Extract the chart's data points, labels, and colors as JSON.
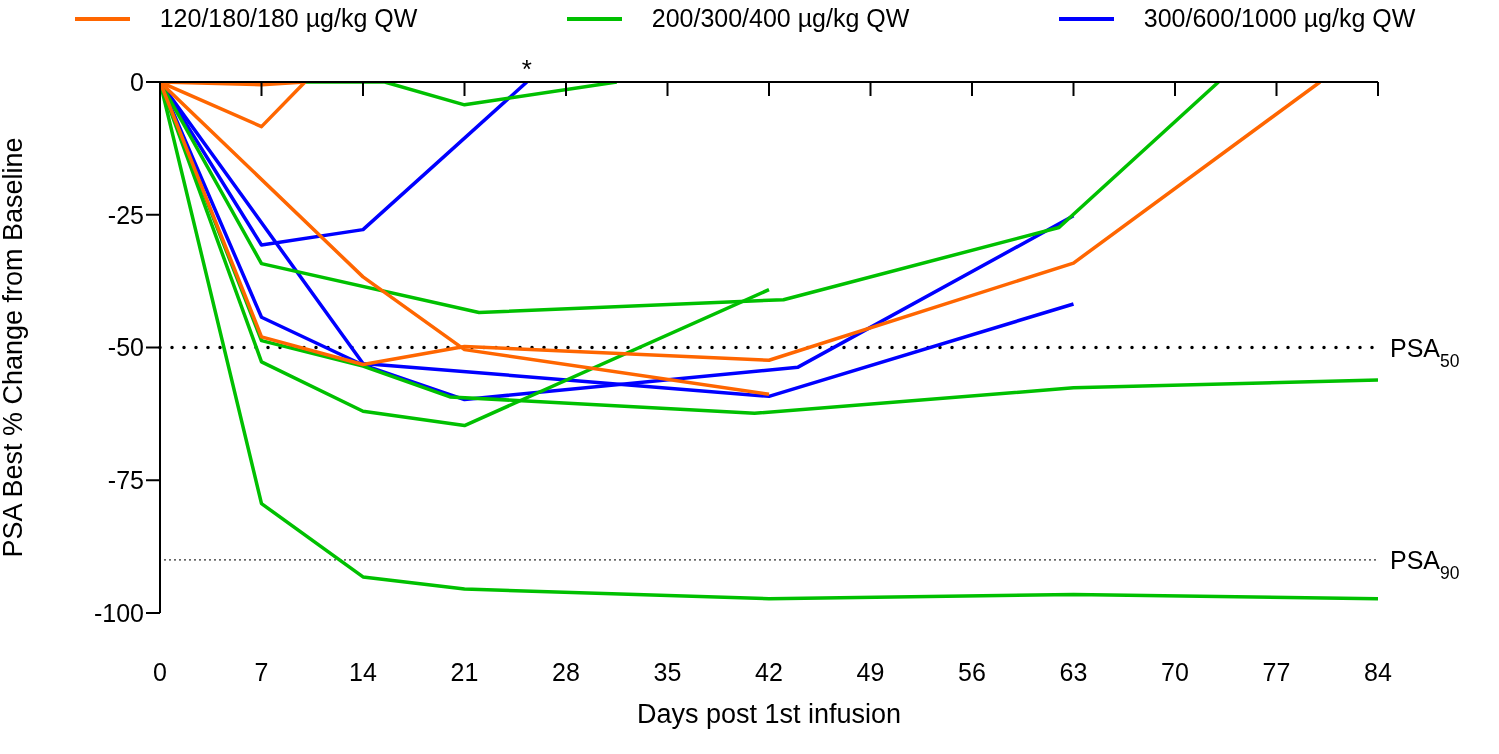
{
  "chart_data": {
    "type": "line",
    "xlabel": "Days post 1st infusion",
    "ylabel": "PSA Best % Change from Baseline",
    "xlim": [
      0,
      84
    ],
    "xticks": [
      0,
      7,
      14,
      21,
      28,
      35,
      42,
      49,
      56,
      63,
      70,
      77,
      84
    ],
    "ylim": [
      -100,
      0
    ],
    "yticks": [
      0,
      -25,
      -50,
      -75,
      -100
    ],
    "legend": "top",
    "marker": "none",
    "line_style": "solid",
    "series": [
      {
        "name": "120/180/180 µg/kg QW",
        "color": "#ff6600",
        "x": [
          0,
          7,
          10
        ],
        "values": [
          0,
          -0.5,
          0
        ]
      },
      {
        "color": "#ff6600",
        "x": [
          0,
          7,
          10
        ],
        "values": [
          0,
          -8.4,
          0
        ]
      },
      {
        "color": "#ff6600",
        "x": [
          0,
          14,
          21,
          42
        ],
        "values": [
          0,
          -36.7,
          -50.4,
          -58.8
        ]
      },
      {
        "color": "#ff6600",
        "x": [
          0,
          7,
          14,
          21,
          42,
          63,
          80
        ],
        "values": [
          0,
          -48,
          -53.2,
          -49.8,
          -52.4,
          -34.1,
          0
        ]
      },
      {
        "name": "200/300/400 µg/kg QW",
        "color": "#00c000",
        "x": [
          0,
          15.5,
          21,
          31.5
        ],
        "values": [
          0,
          0,
          -4.3,
          0
        ]
      },
      {
        "color": "#00c000",
        "x": [
          0,
          7,
          22,
          43,
          62,
          73
        ],
        "values": [
          0,
          -34.2,
          -43.4,
          -41,
          -27.4,
          0
        ]
      },
      {
        "color": "#00c000",
        "x": [
          0,
          7,
          14,
          20,
          41,
          63,
          84
        ],
        "values": [
          0,
          -48.7,
          -53.5,
          -59.3,
          -62.4,
          -57.6,
          -56.1
        ]
      },
      {
        "color": "#00c000",
        "x": [
          0,
          7,
          14,
          21,
          42
        ],
        "values": [
          0,
          -52.7,
          -62,
          -64.7,
          -39.1
        ]
      },
      {
        "color": "#00c000",
        "x": [
          0,
          7,
          14,
          21,
          42,
          63,
          84
        ],
        "values": [
          0,
          -79.4,
          -93.2,
          -95.5,
          -97.3,
          -96.5,
          -97.3
        ]
      },
      {
        "name": "300/600/1000 µg/kg QW",
        "color": "#0000ff",
        "x": [
          0,
          7,
          14,
          25.3
        ],
        "values": [
          0,
          -30.7,
          -27.8,
          0
        ]
      },
      {
        "color": "#0000ff",
        "x": [
          0,
          14,
          42,
          63
        ],
        "values": [
          0,
          -53,
          -59.2,
          -41.8
        ]
      },
      {
        "color": "#0000ff",
        "x": [
          0,
          7,
          14,
          21,
          44,
          63
        ],
        "values": [
          0,
          -44.3,
          -53.3,
          -59.8,
          -53.7,
          -25.2
        ]
      }
    ],
    "ref_lines": [
      {
        "axis": "y",
        "value": -50,
        "label": "PSA$_{50}$",
        "line_style": "dotted"
      },
      {
        "axis": "y",
        "value": -90,
        "label": "PSA$_{90}$",
        "line_style": "dotted"
      }
    ],
    "annotations": [
      {
        "text": "*",
        "x": 25.3,
        "y": 0
      }
    ]
  }
}
